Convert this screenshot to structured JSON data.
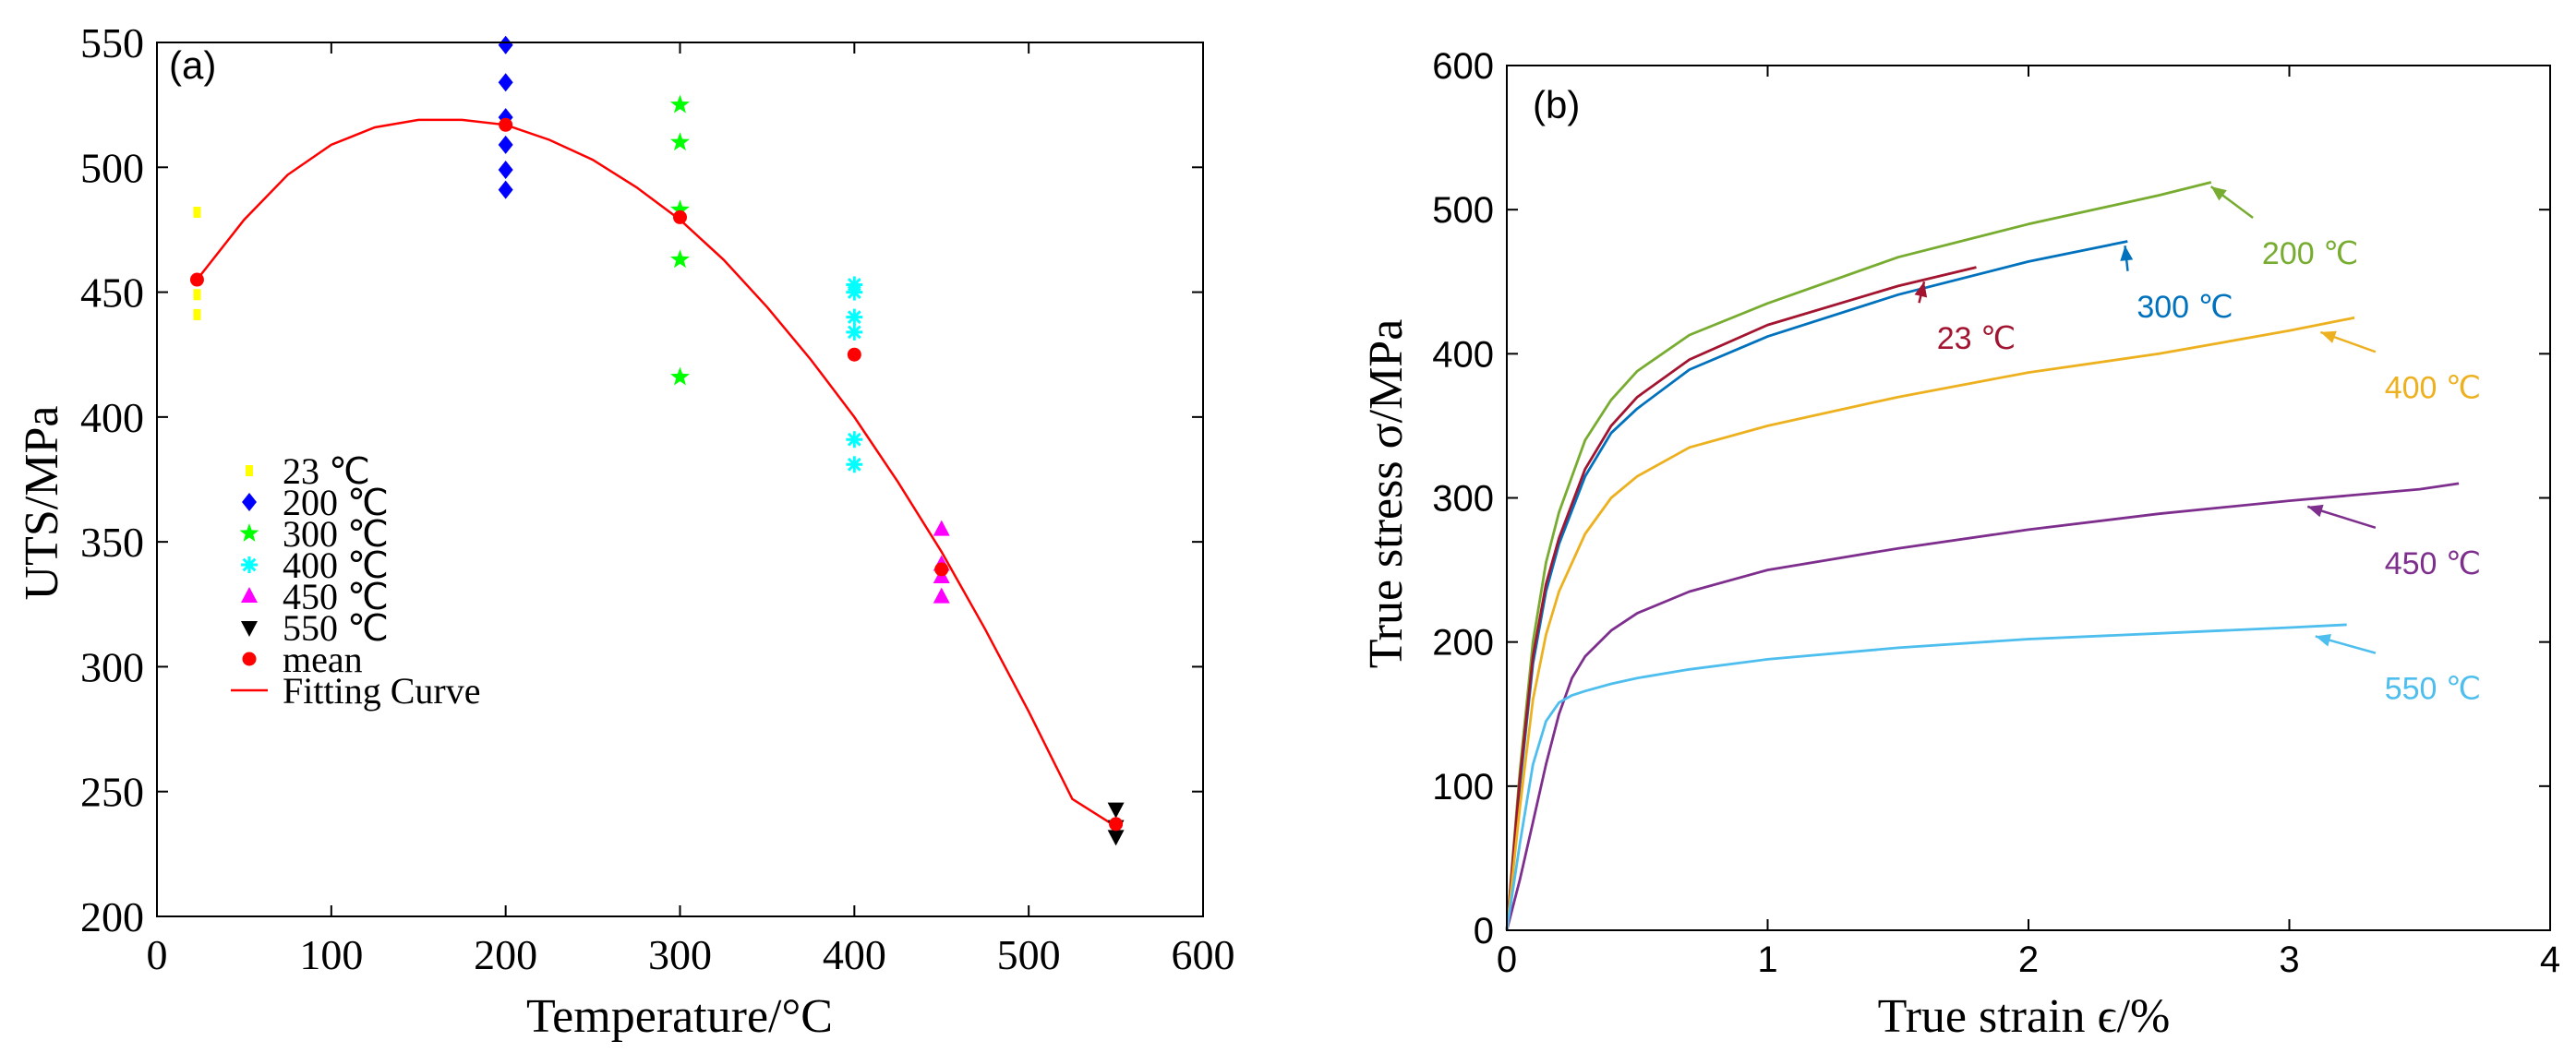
{
  "chart_data": [
    {
      "type": "scatter",
      "panel_label": "(a)",
      "xlabel": "Temperature/°C",
      "ylabel": "UTS/MPa",
      "xlim": [
        0,
        600
      ],
      "ylim": [
        200,
        550
      ],
      "xticks": [
        0,
        100,
        200,
        300,
        400,
        500,
        600
      ],
      "yticks": [
        200,
        250,
        300,
        350,
        400,
        450,
        500,
        550
      ],
      "xtick_labels": [
        "0",
        "100",
        "200",
        "300",
        "400",
        "500",
        "600"
      ],
      "ytick_labels": [
        "200",
        "250",
        "300",
        "350",
        "400",
        "450",
        "500",
        "550"
      ],
      "legend_position": "center-left",
      "series": [
        {
          "name": "23 ℃",
          "marker": "point",
          "color": "#ffff00",
          "x": [
            23,
            23,
            23,
            23
          ],
          "y": [
            482,
            455,
            449,
            441
          ]
        },
        {
          "name": "200 ℃",
          "marker": "diamond",
          "color": "#0000ff",
          "x": [
            200,
            200,
            200,
            200,
            200,
            200
          ],
          "y": [
            549,
            534,
            520,
            509,
            499,
            491
          ]
        },
        {
          "name": "300 ℃",
          "marker": "star",
          "color": "#00ff00",
          "x": [
            300,
            300,
            300,
            300,
            300
          ],
          "y": [
            525,
            510,
            483,
            463,
            416
          ]
        },
        {
          "name": "400 ℃",
          "marker": "asterisk",
          "color": "#00ffff",
          "x": [
            400,
            400,
            400,
            400,
            400,
            400
          ],
          "y": [
            453,
            450,
            440,
            434,
            391,
            381
          ]
        },
        {
          "name": "450 ℃",
          "marker": "triangle-up",
          "color": "#ff00ff",
          "x": [
            450,
            450,
            450,
            450
          ],
          "y": [
            355,
            341,
            336,
            328
          ]
        },
        {
          "name": "550 ℃",
          "marker": "triangle-down",
          "color": "#000000",
          "x": [
            550,
            550,
            550
          ],
          "y": [
            243,
            236,
            232
          ]
        },
        {
          "name": "mean",
          "marker": "circle",
          "color": "#ff0000",
          "x": [
            23,
            200,
            300,
            400,
            450,
            550
          ],
          "y": [
            455,
            517,
            480,
            425,
            339,
            237
          ]
        }
      ],
      "fit_curve": {
        "name": "Fitting Curve",
        "color": "#ff0000",
        "x": [
          23,
          50,
          75,
          100,
          125,
          150,
          175,
          200,
          225,
          250,
          275,
          300,
          325,
          350,
          375,
          400,
          425,
          450,
          475,
          500,
          525,
          550
        ],
        "y": [
          455,
          479,
          497,
          509,
          516,
          519,
          519,
          517,
          511,
          503,
          492,
          479,
          463,
          444,
          423,
          400,
          374,
          346,
          315,
          282,
          247,
          236
        ]
      }
    },
    {
      "type": "line",
      "panel_label": "(b)",
      "xlabel": "True strain ϵ/%",
      "ylabel": "True stress σ/MPa",
      "xlim": [
        0,
        4
      ],
      "ylim": [
        0,
        600
      ],
      "xticks": [
        0,
        1,
        2,
        3,
        4
      ],
      "yticks": [
        0,
        100,
        200,
        300,
        400,
        500,
        600
      ],
      "xtick_labels": [
        "0",
        "1",
        "2",
        "3",
        "4"
      ],
      "ytick_labels": [
        "0",
        "100",
        "200",
        "300",
        "400",
        "500",
        "600"
      ],
      "series": [
        {
          "name": "200 ℃",
          "color": "#77ac30",
          "x": [
            0,
            0.05,
            0.1,
            0.15,
            0.2,
            0.3,
            0.4,
            0.5,
            0.7,
            1.0,
            1.5,
            2.0,
            2.5,
            2.7
          ],
          "y": [
            0,
            110,
            200,
            255,
            290,
            340,
            368,
            388,
            413,
            435,
            467,
            490,
            510,
            519
          ]
        },
        {
          "name": "300 ℃",
          "color": "#0072bd",
          "x": [
            0,
            0.05,
            0.1,
            0.15,
            0.2,
            0.3,
            0.4,
            0.5,
            0.7,
            1.0,
            1.5,
            2.0,
            2.38
          ],
          "y": [
            0,
            100,
            185,
            235,
            268,
            315,
            345,
            362,
            389,
            412,
            441,
            464,
            478
          ]
        },
        {
          "name": "23 ℃",
          "color": "#a2142f",
          "x": [
            0,
            0.05,
            0.1,
            0.15,
            0.2,
            0.3,
            0.4,
            0.5,
            0.7,
            1.0,
            1.5,
            1.8
          ],
          "y": [
            0,
            105,
            190,
            240,
            272,
            320,
            350,
            370,
            396,
            420,
            447,
            460
          ]
        },
        {
          "name": "400 ℃",
          "color": "#edb120",
          "x": [
            0,
            0.05,
            0.1,
            0.15,
            0.2,
            0.3,
            0.4,
            0.5,
            0.7,
            1.0,
            1.5,
            2.0,
            2.5,
            3.0,
            3.25
          ],
          "y": [
            0,
            85,
            160,
            205,
            235,
            275,
            300,
            315,
            335,
            350,
            370,
            387,
            400,
            416,
            425
          ]
        },
        {
          "name": "450 ℃",
          "color": "#7e2f8e",
          "x": [
            0,
            0.05,
            0.1,
            0.15,
            0.2,
            0.25,
            0.3,
            0.4,
            0.5,
            0.7,
            1.0,
            1.5,
            2.0,
            2.5,
            3.0,
            3.5,
            3.65
          ],
          "y": [
            0,
            35,
            75,
            115,
            150,
            175,
            190,
            208,
            220,
            235,
            250,
            265,
            278,
            289,
            298,
            306,
            310
          ]
        },
        {
          "name": "550 ℃",
          "color": "#4dbeee",
          "x": [
            0,
            0.05,
            0.1,
            0.15,
            0.2,
            0.25,
            0.3,
            0.4,
            0.5,
            0.7,
            1.0,
            1.5,
            2.0,
            2.5,
            3.0,
            3.22
          ],
          "y": [
            0,
            60,
            115,
            145,
            158,
            163,
            166,
            171,
            175,
            181,
            188,
            196,
            202,
            206,
            210,
            212
          ]
        }
      ],
      "annotations": [
        {
          "label": "200 ℃",
          "color": "#77ac30",
          "target_x": 2.7,
          "target_y": 516,
          "text_x": 3.08,
          "text_y": 470
        },
        {
          "label": "300 ℃",
          "color": "#0072bd",
          "target_x": 2.37,
          "target_y": 475,
          "text_x": 2.6,
          "text_y": 433
        },
        {
          "label": "23 ℃",
          "color": "#a2142f",
          "target_x": 1.6,
          "target_y": 450,
          "text_x": 1.8,
          "text_y": 411
        },
        {
          "label": "400 ℃",
          "color": "#edb120",
          "target_x": 3.12,
          "target_y": 415,
          "text_x": 3.55,
          "text_y": 377
        },
        {
          "label": "450 ℃",
          "color": "#7e2f8e",
          "target_x": 3.07,
          "target_y": 294,
          "text_x": 3.55,
          "text_y": 255
        },
        {
          "label": "550 ℃",
          "color": "#4dbeee",
          "target_x": 3.1,
          "target_y": 204,
          "text_x": 3.55,
          "text_y": 168
        }
      ]
    }
  ]
}
